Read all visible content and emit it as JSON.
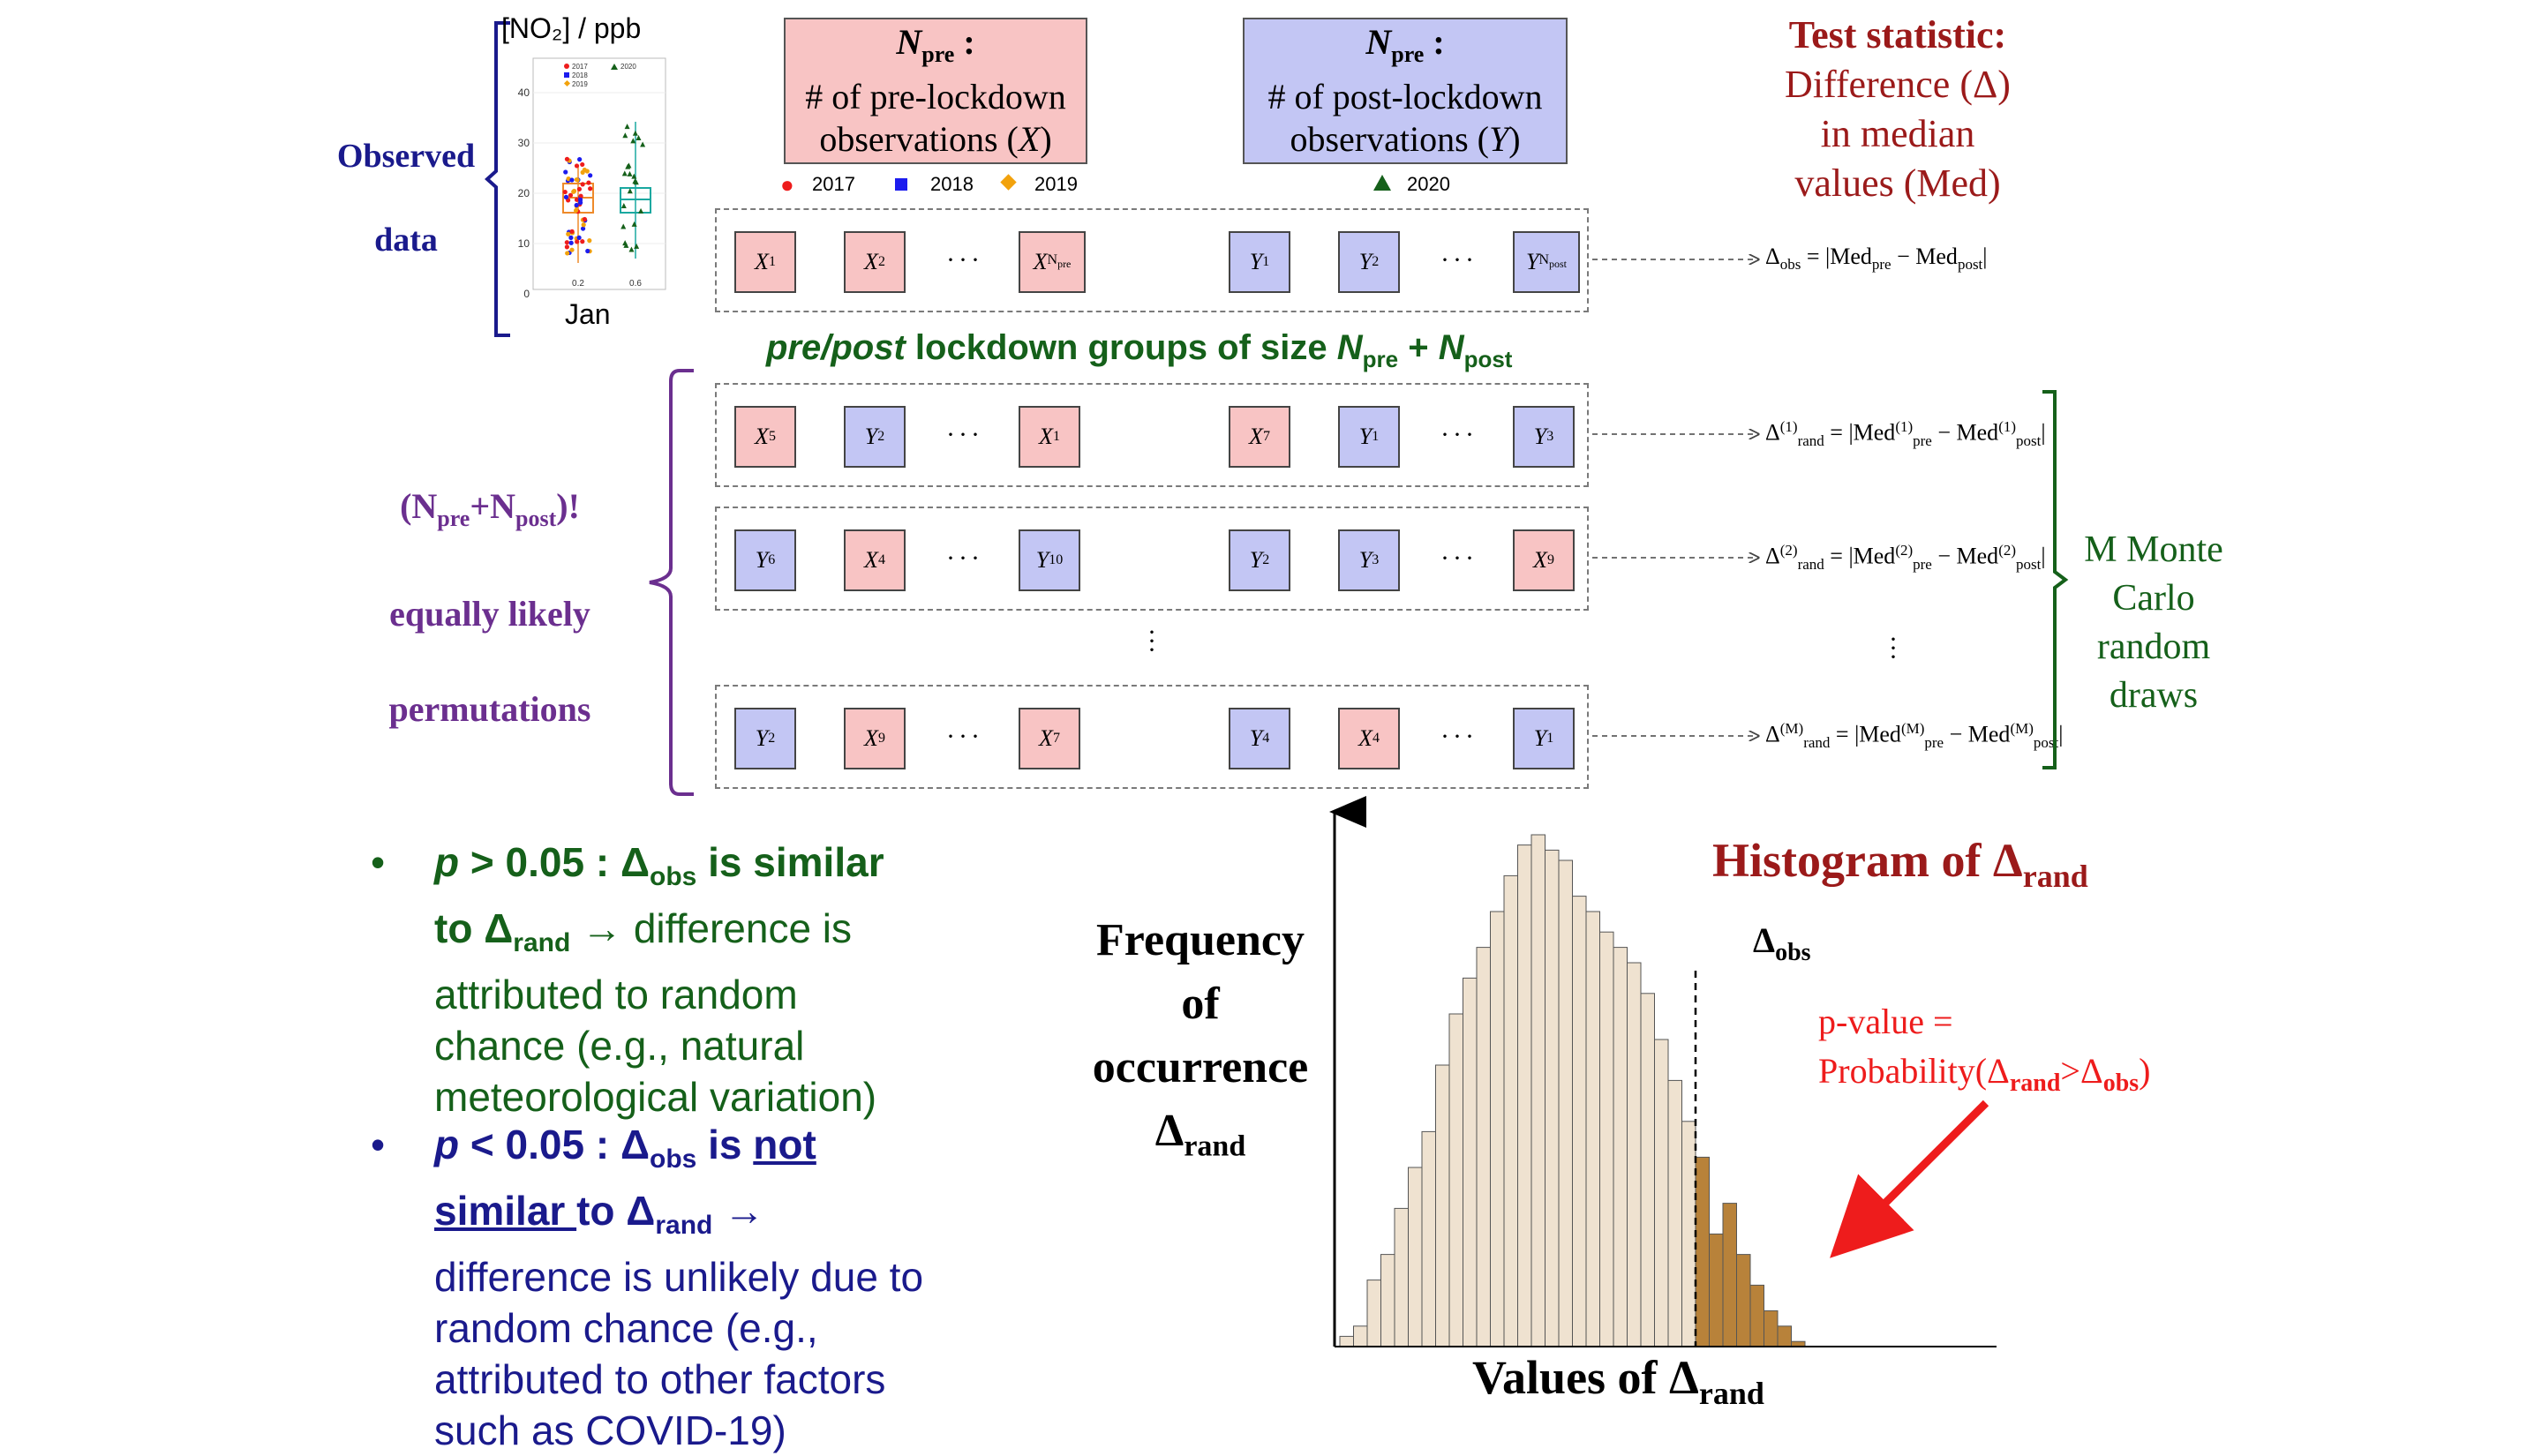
{
  "inset_plot": {
    "ylabel": "[NO₂] / ppb",
    "xlabel": "Jan",
    "legend": [
      "2017",
      "2018",
      "2019",
      "2020"
    ],
    "yticks": [
      "40",
      "30",
      "20",
      "10",
      "0"
    ],
    "xticks": [
      "0.2",
      "0.6"
    ],
    "colors": {
      "2017": "#ee1c1c",
      "2018": "#1c1cee",
      "2019": "#f2a20c",
      "2020": "#15601a"
    }
  },
  "observed_label": [
    "Observed",
    "data"
  ],
  "pre_box": {
    "title": "N",
    "title_sub": "pre",
    "colon": " :",
    "line1": "# of pre-lockdown",
    "line2a": "observations (",
    "var": "X",
    "line2b": ")"
  },
  "post_box": {
    "title": "N",
    "title_sub": "pre",
    "colon": " :",
    "line1": "# of post-lockdown",
    "line2a": "observations (",
    "var": "Y",
    "line2b": ")"
  },
  "year_legend": {
    "y2017": "2017",
    "y2018": "2018",
    "y2019": "2019",
    "y2020": "2020"
  },
  "test_statistic": [
    "Test statistic:",
    "Difference (Δ)",
    "in median",
    "values (Med)"
  ],
  "groups_label": {
    "a": "pre/post",
    "b": " lockdown groups of size ",
    "c": "N",
    "c_sub": "pre",
    "d": " + ",
    "e": "N",
    "e_sub": "post"
  },
  "permutations_label": {
    "factorial": "(N",
    "sub1": "pre",
    "plus": "+N",
    "sub2": "post",
    "close": ")!",
    "line2": "equally likely",
    "line3": "permutations"
  },
  "monte_carlo": [
    "M Monte",
    "Carlo",
    "random",
    "draws"
  ],
  "rows": [
    {
      "cells": [
        [
          "X",
          "1"
        ],
        [
          "X",
          "2"
        ],
        [
          "X",
          "N",
          "pre"
        ],
        [
          "Y",
          "1"
        ],
        [
          "Y",
          "2"
        ],
        [
          "Y",
          "N",
          "post"
        ]
      ],
      "types": [
        "x",
        "x",
        "x",
        "y",
        "y",
        "y"
      ]
    },
    {
      "cells": [
        [
          "X",
          "5"
        ],
        [
          "Y",
          "2"
        ],
        [
          "X",
          "1"
        ],
        [
          "X",
          "7"
        ],
        [
          "Y",
          "1"
        ],
        [
          "Y",
          "3"
        ]
      ],
      "types": [
        "x",
        "y",
        "x",
        "x",
        "y",
        "y"
      ]
    },
    {
      "cells": [
        [
          "Y",
          "6"
        ],
        [
          "X",
          "4"
        ],
        [
          "Y",
          "10"
        ],
        [
          "Y",
          "2"
        ],
        [
          "Y",
          "3"
        ],
        [
          "X",
          "9"
        ]
      ],
      "types": [
        "y",
        "x",
        "y",
        "y",
        "y",
        "x"
      ]
    },
    {
      "cells": [
        [
          "Y",
          "2"
        ],
        [
          "X",
          "9"
        ],
        [
          "X",
          "7"
        ],
        [
          "Y",
          "4"
        ],
        [
          "X",
          "4"
        ],
        [
          "Y",
          "1"
        ]
      ],
      "types": [
        "y",
        "x",
        "x",
        "y",
        "x",
        "y"
      ]
    }
  ],
  "formulas": {
    "obs": {
      "lhs": "Δ",
      "lhs_sub": "obs",
      "eq": " = |Med",
      "s1": "pre",
      "minus": " − Med",
      "s2": "post",
      "end": "|"
    },
    "r1": {
      "sup": "(1)"
    },
    "r2": {
      "sup": "(2)"
    },
    "rM": {
      "sup": "(M)"
    },
    "rand_sub": "rand"
  },
  "bullets": {
    "b1": {
      "p": "p",
      "rest_bold": " > 0.05 : Δ",
      "sub": "obs",
      "rest_bold2": " is similar",
      "line2_bold": "to Δ",
      "sub2": "rand",
      "arrow": " → difference is",
      "line3": "attributed to random",
      "line4": "chance (e.g., natural",
      "line5": "meteorological variation)"
    },
    "b2": {
      "p": "p",
      "rest_bold": " < 0.05 : Δ",
      "sub": "obs",
      "is": " is ",
      "not": "not",
      "similar": "similar ",
      "to": "to Δ",
      "sub2": "rand",
      "arrow": " →",
      "line3": "difference is unlikely due to",
      "line4": "random chance (e.g.,",
      "line5": "attributed to other factors",
      "line6": "such as COVID-19)"
    }
  },
  "histogram": {
    "title": "Histogram of Δ",
    "title_sub": "rand",
    "ylabel": [
      "Frequency",
      "of",
      "occurrence",
      "Δ"
    ],
    "ylabel_sub": "rand",
    "xlabel": "Values of Δ",
    "xlabel_sub": "rand",
    "obs_label": "Δ",
    "obs_sub": "obs",
    "pvalue": [
      "p-value =",
      "Probability(Δ",
      ">Δ",
      ")"
    ],
    "pvalue_subs": [
      "rand",
      "obs"
    ],
    "colors": {
      "light": "#efe2d0",
      "dark": "#b8823a"
    }
  },
  "chart_data": {
    "type": "bar",
    "values": [
      2,
      4,
      13,
      18,
      27,
      35,
      42,
      55,
      65,
      72,
      78,
      85,
      92,
      98,
      100,
      97,
      95,
      88,
      85,
      81,
      78,
      75,
      69,
      60,
      52,
      44,
      37,
      22,
      28,
      18,
      12,
      7,
      4,
      1
    ],
    "shaded_from_index": 26,
    "xlabel": "Values of Δrand",
    "ylabel": "Frequency of occurrence Δrand"
  }
}
